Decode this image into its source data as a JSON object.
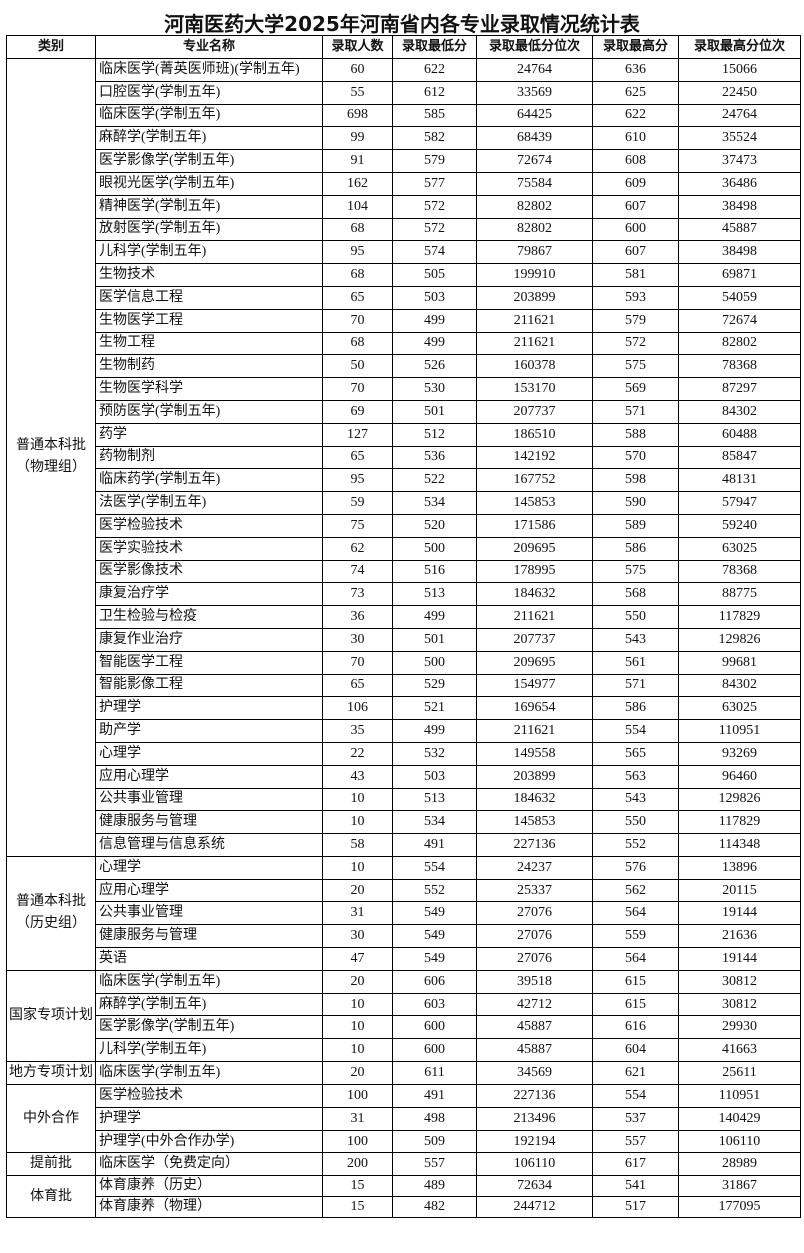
{
  "title": "河南医药大学2025年河南省内各专业录取情况统计表",
  "headers": [
    "类别",
    "专业名称",
    "录取人数",
    "录取最低分",
    "录取最低分位次",
    "录取最高分",
    "录取最高分位次"
  ],
  "groups": [
    {
      "category": "普通本科批（物理组）",
      "rows": [
        [
          "临床医学(菁英医师班)(学制五年)",
          "60",
          "622",
          "24764",
          "636",
          "15066"
        ],
        [
          "口腔医学(学制五年)",
          "55",
          "612",
          "33569",
          "625",
          "22450"
        ],
        [
          "临床医学(学制五年)",
          "698",
          "585",
          "64425",
          "622",
          "24764"
        ],
        [
          "麻醉学(学制五年)",
          "99",
          "582",
          "68439",
          "610",
          "35524"
        ],
        [
          "医学影像学(学制五年)",
          "91",
          "579",
          "72674",
          "608",
          "37473"
        ],
        [
          "眼视光医学(学制五年)",
          "162",
          "577",
          "75584",
          "609",
          "36486"
        ],
        [
          "精神医学(学制五年)",
          "104",
          "572",
          "82802",
          "607",
          "38498"
        ],
        [
          "放射医学(学制五年)",
          "68",
          "572",
          "82802",
          "600",
          "45887"
        ],
        [
          "儿科学(学制五年)",
          "95",
          "574",
          "79867",
          "607",
          "38498"
        ],
        [
          "生物技术",
          "68",
          "505",
          "199910",
          "581",
          "69871"
        ],
        [
          "医学信息工程",
          "65",
          "503",
          "203899",
          "593",
          "54059"
        ],
        [
          "生物医学工程",
          "70",
          "499",
          "211621",
          "579",
          "72674"
        ],
        [
          "生物工程",
          "68",
          "499",
          "211621",
          "572",
          "82802"
        ],
        [
          "生物制药",
          "50",
          "526",
          "160378",
          "575",
          "78368"
        ],
        [
          "生物医学科学",
          "70",
          "530",
          "153170",
          "569",
          "87297"
        ],
        [
          "预防医学(学制五年)",
          "69",
          "501",
          "207737",
          "571",
          "84302"
        ],
        [
          "药学",
          "127",
          "512",
          "186510",
          "588",
          "60488"
        ],
        [
          "药物制剂",
          "65",
          "536",
          "142192",
          "570",
          "85847"
        ],
        [
          "临床药学(学制五年)",
          "95",
          "522",
          "167752",
          "598",
          "48131"
        ],
        [
          "法医学(学制五年)",
          "59",
          "534",
          "145853",
          "590",
          "57947"
        ],
        [
          "医学检验技术",
          "75",
          "520",
          "171586",
          "589",
          "59240"
        ],
        [
          "医学实验技术",
          "62",
          "500",
          "209695",
          "586",
          "63025"
        ],
        [
          "医学影像技术",
          "74",
          "516",
          "178995",
          "575",
          "78368"
        ],
        [
          "康复治疗学",
          "73",
          "513",
          "184632",
          "568",
          "88775"
        ],
        [
          "卫生检验与检疫",
          "36",
          "499",
          "211621",
          "550",
          "117829"
        ],
        [
          "康复作业治疗",
          "30",
          "501",
          "207737",
          "543",
          "129826"
        ],
        [
          "智能医学工程",
          "70",
          "500",
          "209695",
          "561",
          "99681"
        ],
        [
          "智能影像工程",
          "65",
          "529",
          "154977",
          "571",
          "84302"
        ],
        [
          "护理学",
          "106",
          "521",
          "169654",
          "586",
          "63025"
        ],
        [
          "助产学",
          "35",
          "499",
          "211621",
          "554",
          "110951"
        ],
        [
          "心理学",
          "22",
          "532",
          "149558",
          "565",
          "93269"
        ],
        [
          "应用心理学",
          "43",
          "503",
          "203899",
          "563",
          "96460"
        ],
        [
          "公共事业管理",
          "10",
          "513",
          "184632",
          "543",
          "129826"
        ],
        [
          "健康服务与管理",
          "10",
          "534",
          "145853",
          "550",
          "117829"
        ],
        [
          "信息管理与信息系统",
          "58",
          "491",
          "227136",
          "552",
          "114348"
        ]
      ]
    },
    {
      "category": "普通本科批（历史组）",
      "rows": [
        [
          "心理学",
          "10",
          "554",
          "24237",
          "576",
          "13896"
        ],
        [
          "应用心理学",
          "20",
          "552",
          "25337",
          "562",
          "20115"
        ],
        [
          "公共事业管理",
          "31",
          "549",
          "27076",
          "564",
          "19144"
        ],
        [
          "健康服务与管理",
          "30",
          "549",
          "27076",
          "559",
          "21636"
        ],
        [
          "英语",
          "47",
          "549",
          "27076",
          "564",
          "19144"
        ]
      ]
    },
    {
      "category": "国家专项计划",
      "rows": [
        [
          "临床医学(学制五年)",
          "20",
          "606",
          "39518",
          "615",
          "30812"
        ],
        [
          "麻醉学(学制五年)",
          "10",
          "603",
          "42712",
          "615",
          "30812"
        ],
        [
          "医学影像学(学制五年)",
          "10",
          "600",
          "45887",
          "616",
          "29930"
        ],
        [
          "儿科学(学制五年)",
          "10",
          "600",
          "45887",
          "604",
          "41663"
        ]
      ]
    },
    {
      "category": "地方专项计划",
      "rows": [
        [
          "临床医学(学制五年)",
          "20",
          "611",
          "34569",
          "621",
          "25611"
        ]
      ]
    },
    {
      "category": "中外合作",
      "rows": [
        [
          "医学检验技术",
          "100",
          "491",
          "227136",
          "554",
          "110951"
        ],
        [
          "护理学",
          "31",
          "498",
          "213496",
          "537",
          "140429"
        ],
        [
          "护理学(中外合作办学)",
          "100",
          "509",
          "192194",
          "557",
          "106110"
        ]
      ]
    },
    {
      "category": "提前批",
      "short": true,
      "rows": [
        [
          "临床医学（免费定向）",
          "200",
          "557",
          "106110",
          "617",
          "28989"
        ]
      ]
    },
    {
      "category": "体育批",
      "short": true,
      "rows": [
        [
          "体育康养（历史）",
          "15",
          "489",
          "72634",
          "541",
          "31867"
        ],
        [
          "体育康养（物理）",
          "15",
          "482",
          "244712",
          "517",
          "177095"
        ]
      ]
    }
  ]
}
